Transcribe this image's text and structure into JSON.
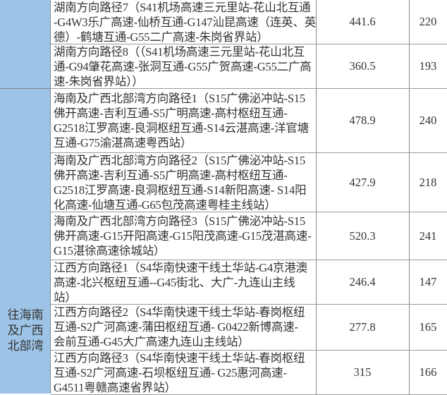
{
  "groups": [
    {
      "label_lines": []
    },
    {
      "label_lines": [
        "往海南",
        "及广西",
        "北部湾"
      ]
    }
  ],
  "rows": [
    {
      "lines": [
        "湖南方向路径7（S41机场高速三元里站-花山北互通",
        "-G4W3乐广高速-仙桥互通-G147汕昆高速（连英、英",
        "德）-鹤塘互通-G55二广高速-朱岗省界站）"
      ],
      "distance": "441.6",
      "time": "220"
    },
    {
      "lines": [
        "湖南方向路径8（（S41机场高速三元里站-花山北互",
        "通-G94肇花高速-张洞互通-G55广贺高速-G55二广高",
        "速-朱岗省界站））"
      ],
      "distance": "360.5",
      "time": "193"
    },
    {
      "lines": [
        "海南及广西北部湾方向路径1（S15广佛泌冲站-S15",
        "佛开高速-吉利互通-S5广明高速-高村枢纽互通-",
        "G2518江罗高速-良洞枢纽互通-S14云湛高速-洋官塘",
        "互通-G75渝湛高速粤西站）"
      ],
      "distance": "478.9",
      "time": "240"
    },
    {
      "lines": [
        "海南及广西北部湾方向路径2（S15广佛泌冲站-S15",
        "佛开高速-吉利互通-S5广明高速-高村枢纽互通-",
        "G2518江罗高速-良洞枢纽互通-S14新阳高速- S14阳",
        "化高速-仙塘互通-G65包茂高速粤桂主线站）"
      ],
      "distance": "427.9",
      "time": "218"
    },
    {
      "lines": [
        "海南及广西北部湾方向路径3（S15广佛泌冲站-S15",
        "佛开高速-G15开阳高速-G15阳茂高速-G15茂湛高速-",
        "G15湛徐高速徐城站）"
      ],
      "distance": "520.3",
      "time": "241"
    },
    {
      "lines": [
        "江西方向路径1（S4华南快速干线土华站-G4京港澳",
        "高速-北兴枢纽互通--G45街北、大广-九连山主线",
        "站）"
      ],
      "distance": "246.4",
      "time": "147"
    },
    {
      "lines": [
        "江西方向路径2（S4华南快速干线土华站-春岗枢纽",
        "互通-S2广河高速-蒲田枢纽互通- G0422新博高速-",
        "会前互通-G45大广高速九连山主线站）"
      ],
      "distance": "277.8",
      "time": "165"
    },
    {
      "lines": [
        "江西方向路径3（S4华南快速干线土华站-春岗枢纽",
        "互通-S2广河高速-石坝枢纽互通- G25惠河高速-",
        "G4511粤赣高速省界站）"
      ],
      "distance": "315",
      "time": "166"
    }
  ]
}
